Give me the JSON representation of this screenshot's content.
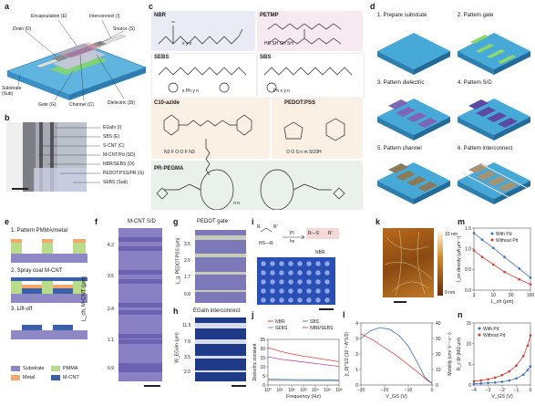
{
  "panels": {
    "a": {
      "letter": "a",
      "labels": [
        "Encapsulation (E)",
        "Interconnect (I)",
        "Drain (D)",
        "Source (S)",
        "Substrate (Sub)",
        "Gate (G)",
        "Channel (C)",
        "Dielectric (Di)"
      ]
    },
    "b": {
      "letter": "b",
      "labels": [
        "EGaIn (I)",
        "SBS (E)",
        "S-CNT (C)",
        "M-CNT/Pd (SD)",
        "NBR/SEBS (Di)",
        "PEDOT:PSS/PR (G)",
        "SEBS (Sub)"
      ]
    },
    "c": {
      "letter": "c",
      "boxes": [
        {
          "title": "NBR",
          "subs": "x  y  z",
          "color": "#e9ecf5"
        },
        {
          "title": "PETMP",
          "subs": "HS  SH  SH  SH",
          "color": "#f6e9ef"
        },
        {
          "title": "SEBS",
          "subs": "x  Ph  y  n",
          "color": "#ffffff"
        },
        {
          "title": "SBS",
          "subs": "Ph  x  y  n",
          "color": "#ffffff"
        },
        {
          "title": "C10-azide",
          "subs": "N3  F  O  O  F  N3",
          "color": "#fbf0e4"
        },
        {
          "title": "PEDOT:PSS",
          "subs": "O  O  S  n  m  SO3H",
          "color": "#fbf0e4"
        },
        {
          "title": "PR-PEGMA",
          "subs": "n  n",
          "color": "#eaf1ea"
        }
      ]
    },
    "d": {
      "letter": "d",
      "steps": [
        "1. Prepare substrate",
        "2. Pattern gate",
        "3. Pattern dielectric",
        "4. Pattern S/D",
        "5. Pattern channel",
        "6. Pattern interconnect"
      ]
    },
    "e": {
      "letter": "e",
      "steps": [
        "1. Pattern PMMA/metal",
        "2. Spray coat M-CNT",
        "3. Lift-off"
      ],
      "legend": [
        "Substrate",
        "PMMA",
        "Metal",
        "M-CNT"
      ],
      "colors": {
        "substrate": "#8e88c4",
        "pmma": "#b9dc8a",
        "metal": "#f2a86b",
        "mcnt": "#3b5fa8"
      }
    },
    "f": {
      "letter": "f",
      "header": "M-CNT  S/D",
      "ylabel": "L_ch, M-CNT (μm)",
      "rows": [
        "4.2",
        "3.5",
        "2.4",
        "1.1",
        "0.9"
      ]
    },
    "g": {
      "letter": "g",
      "header": "PEDOT gate",
      "ylabel": "L_g, PEDOT:PSS (μm)",
      "rows": [
        "3.5",
        "2.5",
        "1.7",
        "0.8"
      ]
    },
    "h": {
      "letter": "h",
      "header": "EGaIn interconnect",
      "ylabel": "W_EGaIn (μm)",
      "rows": [
        "11.5",
        "7.9",
        "3.5",
        "2.0"
      ]
    },
    "i": {
      "letter": "i",
      "reaction": [
        "R",
        "R′",
        "PI",
        "hν",
        "R—S",
        "R′",
        "HS—R"
      ],
      "label": "NBR"
    },
    "k": {
      "letter": "k",
      "scale_top": "10 nm",
      "scale_bottom": "0 nm"
    }
  },
  "chart_data": [
    {
      "panel": "j",
      "type": "line",
      "xlabel": "Frequency (Hz)",
      "ylabel": "Dielectric constant",
      "xscale": "log",
      "xticks": [
        "10⁰",
        "10¹",
        "10²",
        "10³",
        "10⁴",
        "10⁵",
        "10⁶"
      ],
      "ylim": [
        0,
        25
      ],
      "yticks": [
        "0",
        "5",
        "10",
        "15",
        "20",
        "25"
      ],
      "x": [
        1,
        10,
        100,
        1000,
        10000,
        100000,
        1000000
      ],
      "series": [
        {
          "name": "NBR",
          "values": [
            20.5,
            18.5,
            17.0,
            15.8,
            14.8,
            13.8,
            12.8
          ],
          "color": "#e4453a"
        },
        {
          "name": "SBS",
          "values": [
            3.2,
            3.1,
            3.0,
            3.0,
            2.9,
            2.9,
            2.8
          ],
          "color": "#4c86c6"
        },
        {
          "name": "SEBS",
          "values": [
            2.6,
            2.5,
            2.5,
            2.4,
            2.4,
            2.4,
            2.3
          ],
          "color": "#888888"
        },
        {
          "name": "NBR/SEBS",
          "values": [
            15.5,
            14.2,
            13.4,
            12.6,
            11.8,
            11.0,
            10.2
          ],
          "color": "#c24a8c"
        }
      ],
      "legend_position": "top"
    },
    {
      "panel": "l",
      "type": "line",
      "xlabel": "V_GS (V)",
      "ylabel_left": "|I_D|^1/2 (10⁻³ A^1/2)",
      "ylabel_right": "Mobility (cm² V⁻¹ s⁻¹)",
      "xlim": [
        -30,
        0
      ],
      "xticks": [
        "−30",
        "−20",
        "−10",
        "0"
      ],
      "ylim_left": [
        0,
        4
      ],
      "yticks_left": [
        "0",
        "1",
        "2",
        "3",
        "4"
      ],
      "ylim_right": [
        0,
        40
      ],
      "yticks_right": [
        "0",
        "10",
        "20",
        "30",
        "40"
      ],
      "series": [
        {
          "name": "|I_D|^1/2",
          "axis": "left",
          "x": [
            -30,
            -25,
            -20,
            -15,
            -10,
            -5,
            -2,
            0
          ],
          "values": [
            3.3,
            2.9,
            2.4,
            1.9,
            1.3,
            0.7,
            0.3,
            0.1
          ],
          "color": "#e4453a"
        },
        {
          "name": "Mobility",
          "axis": "right",
          "x": [
            -30,
            -26,
            -22,
            -18,
            -14,
            -10,
            -6,
            -3,
            0
          ],
          "values": [
            30,
            35,
            37,
            36,
            32,
            25,
            14,
            5,
            1
          ],
          "color": "#3b6fbf"
        }
      ]
    },
    {
      "panel": "m",
      "type": "line",
      "xlabel": "L_ch (μm)",
      "ylabel": "I_on density (μA μm⁻¹)",
      "xscale": "log",
      "xticks": [
        "3",
        "10",
        "30",
        "100"
      ],
      "ylim": [
        0,
        1.5
      ],
      "yticks": [
        "0.0",
        "0.5",
        "1.0",
        "1.5"
      ],
      "x": [
        3,
        5,
        10,
        20,
        50,
        100
      ],
      "series": [
        {
          "name": "With Pd",
          "values": [
            1.38,
            1.22,
            1.02,
            0.8,
            0.52,
            0.3
          ],
          "color": "#3b6fbf"
        },
        {
          "name": "Without Pd",
          "values": [
            0.96,
            0.8,
            0.62,
            0.44,
            0.26,
            0.14
          ],
          "color": "#d23a2f"
        }
      ],
      "legend_position": "top-right"
    },
    {
      "panel": "n",
      "type": "line",
      "xlabel": "V_GS (V)",
      "ylabel": "R_c W (MΩ μm)",
      "xlim": [
        -4,
        0
      ],
      "xticks": [
        "−4",
        "−3",
        "−2",
        "−1",
        "0"
      ],
      "ylim": [
        0,
        15
      ],
      "yticks": [
        "0",
        "5",
        "10",
        "15"
      ],
      "x": [
        -4.0,
        -3.5,
        -3.0,
        -2.5,
        -2.0,
        -1.5,
        -1.0,
        -0.5,
        -0.2,
        0.0
      ],
      "series": [
        {
          "name": "With Pd",
          "values": [
            0.3,
            0.4,
            0.5,
            0.6,
            0.8,
            1.1,
            1.6,
            2.5,
            3.6,
            4.5
          ],
          "color": "#3b6fbf"
        },
        {
          "name": "Without Pd",
          "values": [
            0.9,
            1.1,
            1.4,
            1.8,
            2.4,
            3.3,
            4.7,
            7.0,
            9.5,
            12.0
          ],
          "color": "#d23a2f"
        }
      ],
      "legend_position": "top-left"
    }
  ]
}
